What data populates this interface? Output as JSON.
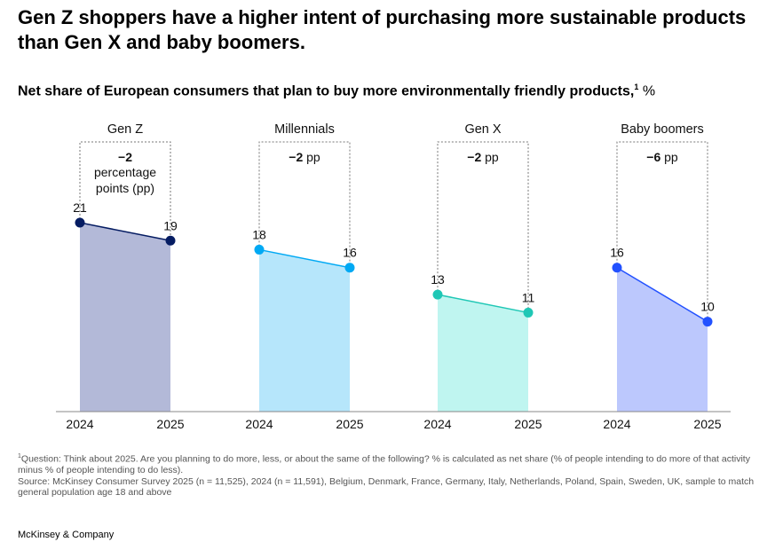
{
  "title": "Gen Z shoppers have a higher intent of purchasing more sustainable products than Gen X and baby boomers.",
  "subtitle": "Net share of European consumers that plan to buy more environmentally friendly products,",
  "subtitle_sup": "1",
  "subtitle_unit": " %",
  "chart_data": {
    "type": "area",
    "title": "Net share of European consumers that plan to buy more environmentally friendly products",
    "ylabel": "%",
    "ylim": [
      0,
      21
    ],
    "grid": false,
    "groups": [
      {
        "name": "Gen Z",
        "x": [
          "2024",
          "2025"
        ],
        "values": [
          21,
          19
        ],
        "change_bold": "−2",
        "change_unit": "percentage points (pp)",
        "line_color": "#051c62",
        "fill_color": "#b3b9d8"
      },
      {
        "name": "Millennials",
        "x": [
          "2024",
          "2025"
        ],
        "values": [
          18,
          16
        ],
        "change_bold": "−2",
        "change_unit": "pp",
        "line_color": "#00a9f4",
        "fill_color": "#b6e6fb"
      },
      {
        "name": "Gen X",
        "x": [
          "2024",
          "2025"
        ],
        "values": [
          13,
          11
        ],
        "change_bold": "−2",
        "change_unit": "pp",
        "line_color": "#1fc7b5",
        "fill_color": "#bff5f0"
      },
      {
        "name": "Baby boomers",
        "x": [
          "2024",
          "2025"
        ],
        "values": [
          16,
          10
        ],
        "change_bold": "−6",
        "change_unit": "pp",
        "line_color": "#2251ff",
        "fill_color": "#bcc8fd"
      }
    ]
  },
  "footnote": {
    "sup": "1",
    "question": "Question: Think about 2025. Are you planning to do more, less, or about the same of the following? % is calculated as net share (% of people intending to do more of that activity minus % of people intending to do less).",
    "source": "Source: McKinsey Consumer Survey 2025 (n = 11,525), 2024 (n = 11,591), Belgium, Denmark, France, Germany, Italy, Netherlands, Poland, Spain, Sweden, UK, sample to match general population age 18 and above"
  },
  "logo": "McKinsey & Company"
}
